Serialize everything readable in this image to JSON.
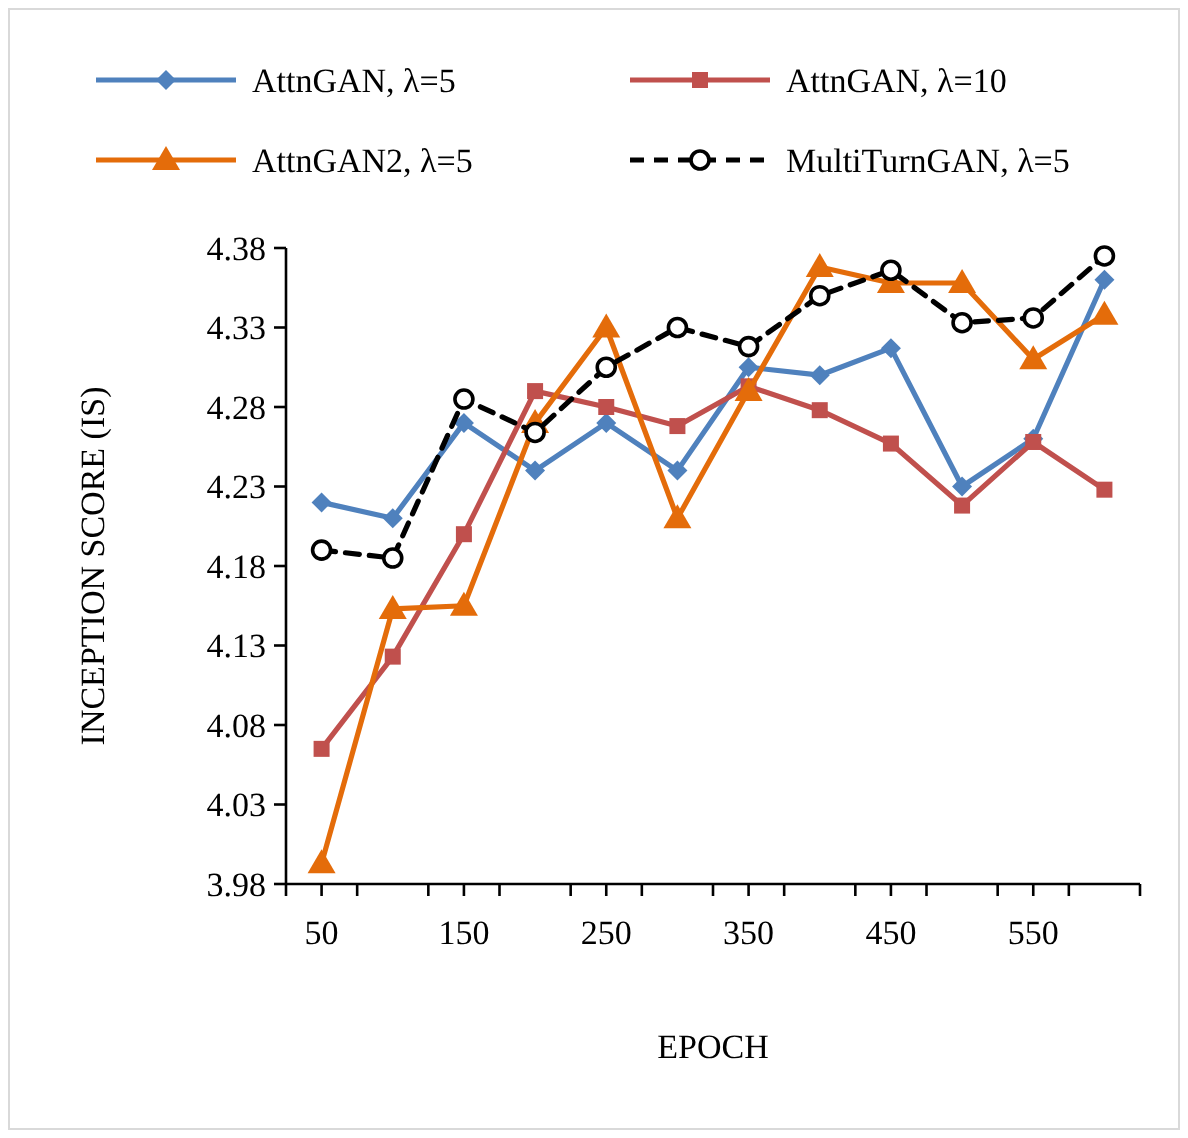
{
  "chart_data": {
    "type": "line",
    "xlabel": "EPOCH",
    "ylabel": "INCEPTION SCORE (IS)",
    "x": [
      50,
      100,
      150,
      200,
      250,
      300,
      350,
      400,
      450,
      500,
      550,
      600
    ],
    "xlim": [
      25,
      625
    ],
    "xticks": [
      {
        "value": 25,
        "label": null
      },
      50,
      {
        "value": 75,
        "label": null
      },
      {
        "value": 125,
        "label": null
      },
      150,
      {
        "value": 175,
        "label": null
      },
      {
        "value": 225,
        "label": null
      },
      250,
      {
        "value": 275,
        "label": null
      },
      {
        "value": 325,
        "label": null
      },
      350,
      {
        "value": 375,
        "label": null
      },
      {
        "value": 425,
        "label": null
      },
      450,
      {
        "value": 475,
        "label": null
      },
      {
        "value": 525,
        "label": null
      },
      550,
      {
        "value": 575,
        "label": null
      },
      {
        "value": 625,
        "label": null
      }
    ],
    "ylim": [
      3.98,
      4.38
    ],
    "yticks": [
      3.98,
      4.03,
      4.08,
      4.13,
      4.18,
      4.23,
      4.28,
      4.33,
      4.38
    ],
    "grid": false,
    "legend": "top",
    "series": [
      {
        "name": "AttnGAN, λ=5",
        "color": "#4f81bd",
        "marker": "diamond",
        "line_style": "solid",
        "values": [
          4.22,
          4.21,
          4.27,
          4.24,
          4.27,
          4.24,
          4.305,
          4.3,
          4.317,
          4.23,
          4.26,
          4.36
        ]
      },
      {
        "name": "AttnGAN, λ=10",
        "color": "#c0504d",
        "marker": "square",
        "line_style": "solid",
        "values": [
          4.065,
          4.123,
          4.2,
          4.29,
          4.28,
          4.268,
          4.293,
          4.278,
          4.257,
          4.218,
          4.258,
          4.228
        ]
      },
      {
        "name": "AttnGAN2, λ=5",
        "color": "#e46c0a",
        "marker": "triangle",
        "line_style": "solid",
        "values": [
          3.993,
          4.153,
          4.155,
          4.27,
          4.33,
          4.21,
          4.29,
          4.368,
          4.358,
          4.358,
          4.31,
          4.338
        ]
      },
      {
        "name": "MultiTurnGAN, λ=5",
        "color": "#000000",
        "marker": "circle",
        "line_style": "dashed",
        "values": [
          4.19,
          4.185,
          4.285,
          4.264,
          4.305,
          4.33,
          4.318,
          4.35,
          4.366,
          4.333,
          4.336,
          4.375
        ]
      }
    ]
  }
}
